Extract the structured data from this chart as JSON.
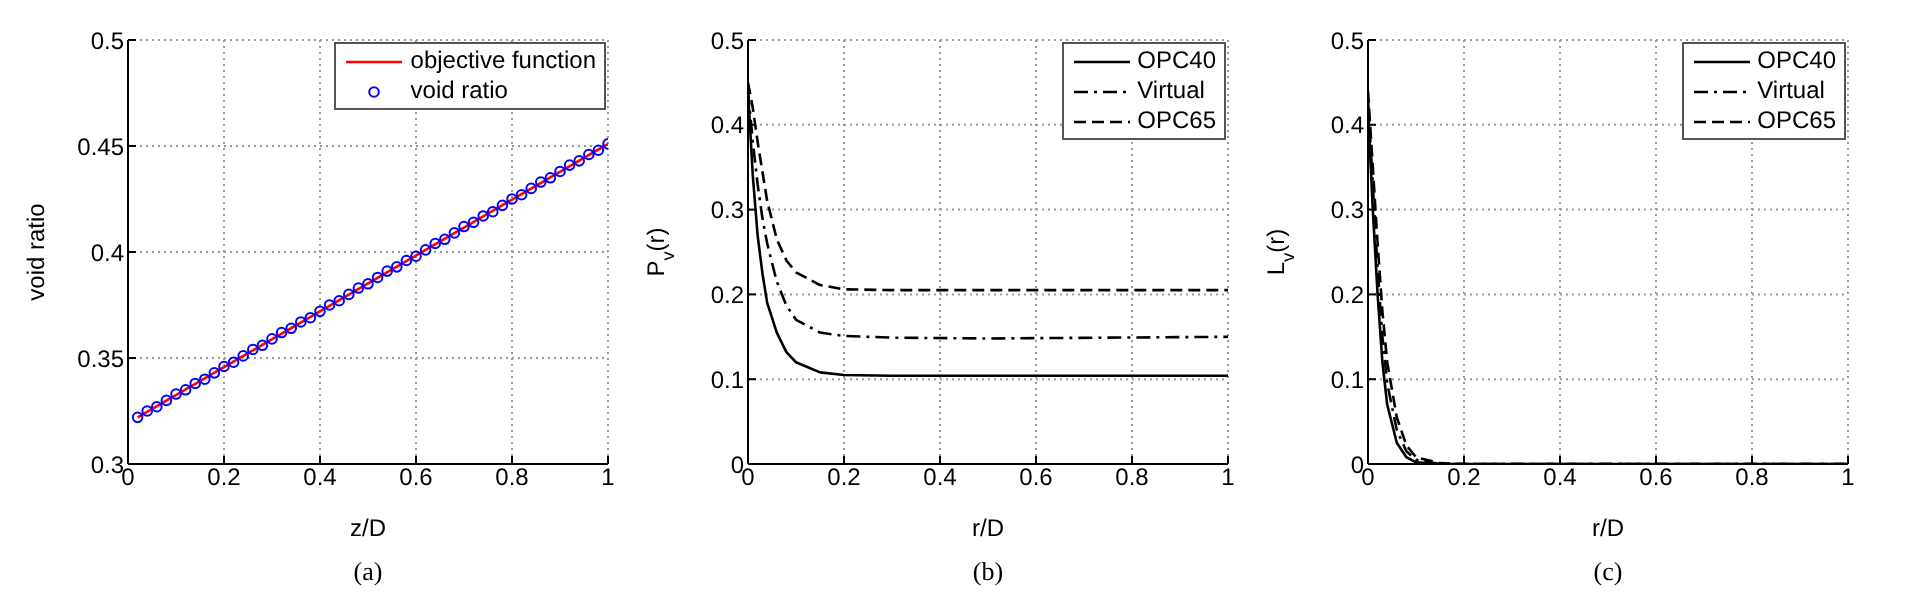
{
  "chart_data": [
    {
      "type": "line",
      "xlabel": "z/D",
      "ylabel": "void ratio",
      "xlim": [
        0,
        1
      ],
      "ylim": [
        0.3,
        0.5
      ],
      "xticks": [
        0,
        0.2,
        0.4,
        0.6,
        0.8,
        1
      ],
      "yticks": [
        0.3,
        0.35,
        0.4,
        0.45,
        0.5
      ],
      "grid": true,
      "legend": "top right",
      "annotations": [
        "(a)"
      ],
      "series": [
        {
          "name": "objective function",
          "type": "line",
          "color": "#ff0000",
          "line_style": "solid",
          "x": [
            0.02,
            1
          ],
          "values": [
            0.322,
            0.451
          ]
        },
        {
          "name": "void ratio",
          "type": "scatter",
          "color": "#0000ff",
          "marker": "circle",
          "x": [
            0.02,
            0.04,
            0.06,
            0.08,
            0.1,
            0.12,
            0.14,
            0.16,
            0.18,
            0.2,
            0.22,
            0.24,
            0.26,
            0.28,
            0.3,
            0.32,
            0.34,
            0.36,
            0.38,
            0.4,
            0.42,
            0.44,
            0.46,
            0.48,
            0.5,
            0.52,
            0.54,
            0.56,
            0.58,
            0.6,
            0.62,
            0.64,
            0.66,
            0.68,
            0.7,
            0.72,
            0.74,
            0.76,
            0.78,
            0.8,
            0.82,
            0.84,
            0.86,
            0.88,
            0.9,
            0.92,
            0.94,
            0.96,
            0.98,
            1
          ],
          "values": [
            0.322,
            0.325,
            0.327,
            0.33,
            0.333,
            0.335,
            0.338,
            0.34,
            0.343,
            0.346,
            0.348,
            0.351,
            0.354,
            0.356,
            0.359,
            0.362,
            0.364,
            0.367,
            0.369,
            0.372,
            0.375,
            0.377,
            0.38,
            0.383,
            0.385,
            0.388,
            0.391,
            0.393,
            0.396,
            0.398,
            0.401,
            0.404,
            0.406,
            0.409,
            0.412,
            0.414,
            0.417,
            0.419,
            0.422,
            0.425,
            0.427,
            0.43,
            0.433,
            0.435,
            0.438,
            0.441,
            0.443,
            0.446,
            0.448,
            0.451
          ]
        }
      ]
    },
    {
      "type": "line",
      "xlabel": "r/D",
      "ylabel": "P$_{v}$(r)",
      "xlim": [
        0,
        1
      ],
      "ylim": [
        0,
        0.5
      ],
      "xticks": [
        0,
        0.2,
        0.4,
        0.6,
        0.8,
        1
      ],
      "yticks": [
        0,
        0.1,
        0.2,
        0.3,
        0.4,
        0.5
      ],
      "grid": true,
      "legend": "top right",
      "annotations": [
        "(b)"
      ],
      "x": [
        0,
        0.01,
        0.02,
        0.03,
        0.04,
        0.06,
        0.08,
        0.1,
        0.15,
        0.2,
        0.3,
        0.5,
        1
      ],
      "series": [
        {
          "name": "OPC40",
          "color": "#000000",
          "line_style": "solid",
          "values": [
            0.44,
            0.34,
            0.27,
            0.225,
            0.19,
            0.155,
            0.132,
            0.12,
            0.108,
            0.105,
            0.104,
            0.104,
            0.104
          ]
        },
        {
          "name": "Virtual",
          "color": "#000000",
          "line_style": "dashdot",
          "values": [
            0.44,
            0.38,
            0.33,
            0.29,
            0.26,
            0.215,
            0.187,
            0.17,
            0.155,
            0.151,
            0.149,
            0.148,
            0.15
          ]
        },
        {
          "name": "OPC65",
          "color": "#000000",
          "line_style": "dashed",
          "values": [
            0.45,
            0.42,
            0.38,
            0.345,
            0.31,
            0.265,
            0.24,
            0.226,
            0.211,
            0.206,
            0.205,
            0.205,
            0.205
          ]
        }
      ]
    },
    {
      "type": "line",
      "xlabel": "r/D",
      "ylabel": "L$_{v}$(r)",
      "xlim": [
        0,
        1
      ],
      "ylim": [
        0,
        0.5
      ],
      "xticks": [
        0,
        0.2,
        0.4,
        0.6,
        0.8,
        1
      ],
      "yticks": [
        0,
        0.1,
        0.2,
        0.3,
        0.4,
        0.5
      ],
      "grid": true,
      "legend": "top right",
      "annotations": [
        "(c)"
      ],
      "x": [
        0,
        0.01,
        0.02,
        0.03,
        0.04,
        0.06,
        0.08,
        0.1,
        0.15,
        0.2,
        0.3,
        0.5,
        1
      ],
      "series": [
        {
          "name": "OPC40",
          "color": "#000000",
          "line_style": "solid",
          "values": [
            0.42,
            0.3,
            0.2,
            0.12,
            0.07,
            0.025,
            0.008,
            0.002,
            0,
            0,
            0,
            0,
            0
          ]
        },
        {
          "name": "Virtual",
          "color": "#000000",
          "line_style": "dashdot",
          "values": [
            0.43,
            0.33,
            0.23,
            0.15,
            0.095,
            0.04,
            0.015,
            0.005,
            0,
            0,
            0,
            0,
            0
          ]
        },
        {
          "name": "OPC65",
          "color": "#000000",
          "line_style": "dashed",
          "values": [
            0.44,
            0.35,
            0.26,
            0.18,
            0.12,
            0.055,
            0.022,
            0.008,
            0.001,
            0,
            0,
            0,
            0
          ]
        }
      ]
    }
  ]
}
